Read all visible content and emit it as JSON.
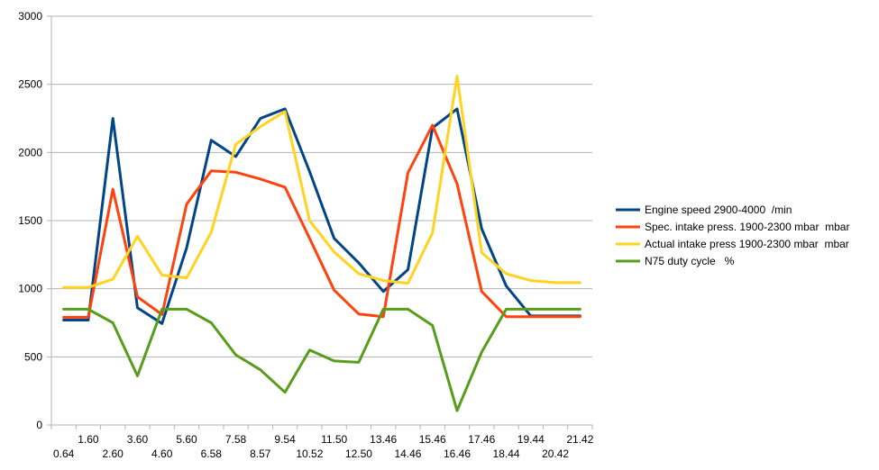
{
  "chart_data": {
    "type": "line",
    "x": [
      "0.64",
      "1.60",
      "2.60",
      "3.60",
      "4.60",
      "5.60",
      "6.58",
      "7.58",
      "8.57",
      "9.54",
      "10.52",
      "11.50",
      "12.50",
      "13.46",
      "14.46",
      "15.46",
      "16.46",
      "17.46",
      "18.44",
      "19.44",
      "20.42",
      "21.42"
    ],
    "x_labels_row1": [
      "1.60",
      "3.60",
      "5.60",
      "7.58",
      "9.54",
      "11.50",
      "13.46",
      "15.46",
      "17.46",
      "19.44",
      "21.42"
    ],
    "x_labels_row2": [
      "0.64",
      "2.60",
      "4.60",
      "6.58",
      "8.57",
      "10.52",
      "12.50",
      "14.46",
      "16.46",
      "18.44",
      "20.42"
    ],
    "ylim": [
      0,
      3000
    ],
    "yticks": [
      "0",
      "500",
      "1000",
      "1500",
      "2000",
      "2500",
      "3000"
    ],
    "grid": true,
    "legend_position": "right",
    "series": [
      {
        "name": "Engine speed 2900-4000  /min",
        "color": "#004586",
        "values": [
          770,
          770,
          2250,
          860,
          745,
          1300,
          2090,
          1970,
          2250,
          2320,
          1860,
          1370,
          1190,
          980,
          1140,
          2180,
          2320,
          1440,
          1020,
          800,
          800,
          800
        ]
      },
      {
        "name": "Spec. intake press. 1900-2300 mbar  mbar",
        "color": "#ff420e",
        "values": [
          790,
          790,
          1730,
          940,
          810,
          1620,
          1865,
          1855,
          1805,
          1745,
          1370,
          990,
          815,
          795,
          1850,
          2200,
          1770,
          980,
          795,
          795,
          795,
          795
        ]
      },
      {
        "name": "Actual intake press 1900-2300 mbar  mbar",
        "color": "#ffd320",
        "values": [
          1010,
          1010,
          1070,
          1385,
          1100,
          1080,
          1415,
          2060,
          2190,
          2300,
          1500,
          1270,
          1110,
          1060,
          1040,
          1410,
          2560,
          1265,
          1110,
          1060,
          1045,
          1045
        ]
      },
      {
        "name": "N75 duty cycle   %",
        "color": "#579d1c",
        "values": [
          850,
          850,
          750,
          360,
          850,
          850,
          750,
          515,
          405,
          240,
          550,
          470,
          460,
          850,
          850,
          730,
          105,
          535,
          850,
          850,
          850,
          850
        ]
      }
    ]
  }
}
